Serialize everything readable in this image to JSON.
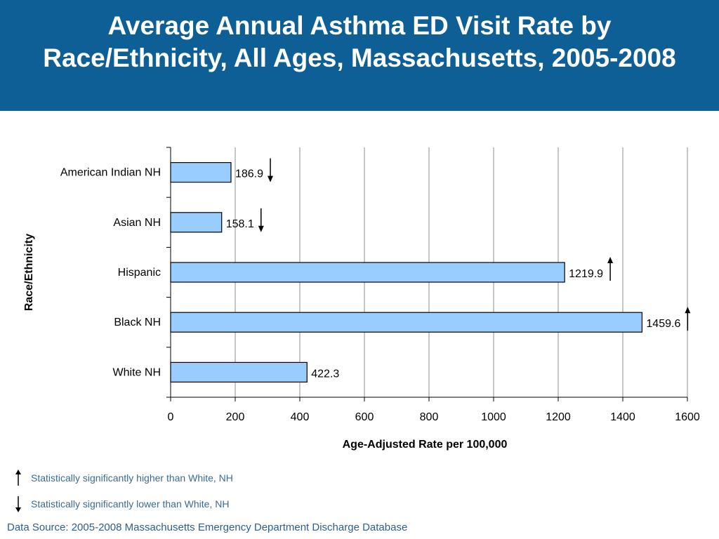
{
  "slide": {
    "title": "Average Annual Asthma ED Visit Rate by Race/Ethnicity, All Ages, Massachusetts, 2005-2008",
    "colors": {
      "banner": "#0e5f96",
      "bar_fill": "#99ccff",
      "bar_stroke": "#000000",
      "legend_text": "#3a6c92",
      "source_text": "#2d5f8c"
    }
  },
  "legend": {
    "higher": {
      "icon": "arrow-up-icon",
      "label": "Statistically significantly higher than White, NH"
    },
    "lower": {
      "icon": "arrow-down-icon",
      "label": "Statistically significantly lower than White, NH"
    }
  },
  "source_note": "Data Source: 2005-2008 Massachusetts Emergency Department Discharge Database",
  "chart_data": {
    "type": "bar",
    "orientation": "horizontal",
    "categories": [
      "American Indian NH",
      "Asian NH",
      "Hispanic",
      "Black NH",
      "White NH"
    ],
    "values": [
      186.9,
      158.1,
      1219.9,
      1459.6,
      422.3
    ],
    "value_labels": [
      "186.9",
      "158.1",
      "1219.9",
      "1459.6",
      "422.3"
    ],
    "significance": [
      "lower",
      "lower",
      "higher",
      "higher",
      "none"
    ],
    "xlabel": "Age-Adjusted Rate per 100,000",
    "ylabel": "Race/Ethnicity",
    "xlim": [
      0,
      1600
    ],
    "xticks": [
      0,
      200,
      400,
      600,
      800,
      1000,
      1200,
      1400,
      1600
    ],
    "grid": true
  }
}
